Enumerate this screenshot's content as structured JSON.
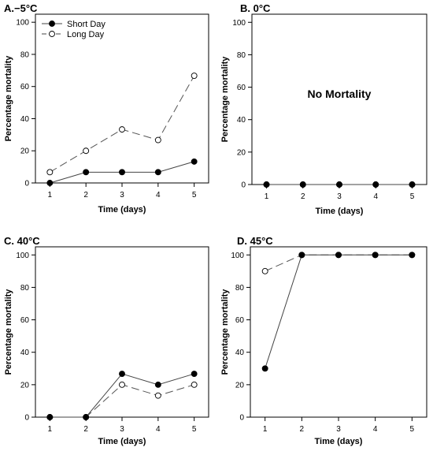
{
  "chart_data": [
    {
      "id": "A",
      "type": "line",
      "title": "A.−5°C",
      "xlabel": "Time (days)",
      "ylabel": "Percentage mortality",
      "x": [
        1,
        2,
        3,
        4,
        5
      ],
      "xticks": [
        "1",
        "2",
        "3",
        "4",
        "5"
      ],
      "yticks": [
        0,
        20,
        40,
        60,
        80,
        100
      ],
      "ylim": [
        0,
        105
      ],
      "xlim": [
        0.6,
        5.4
      ],
      "legend": "top-left",
      "series": [
        {
          "name": "Short Day",
          "marker": "filled",
          "line": "solid",
          "values": [
            0,
            6.7,
            6.7,
            6.7,
            13.3
          ]
        },
        {
          "name": "Long Day",
          "marker": "open",
          "line": "dashed",
          "values": [
            6.7,
            20,
            33.3,
            26.7,
            66.7
          ]
        }
      ]
    },
    {
      "id": "B",
      "type": "line",
      "title": "B. 0°C",
      "xlabel": "Time (days)",
      "ylabel": "Percentage mortality",
      "annotation": "No Mortality",
      "x": [
        1,
        2,
        3,
        4,
        5
      ],
      "xticks": [
        "1",
        "2",
        "3",
        "4",
        "5"
      ],
      "yticks": [
        0,
        20,
        40,
        60,
        80,
        100
      ],
      "ylim": [
        0,
        105
      ],
      "xlim": [
        0.6,
        5.4
      ],
      "series": [
        {
          "name": "",
          "marker": "filled",
          "line": "solid",
          "values": [
            0,
            0,
            0,
            0,
            0
          ]
        },
        {
          "name": "",
          "marker": "open",
          "line": "dashed",
          "values": [
            0,
            0,
            0,
            0,
            0
          ]
        }
      ]
    },
    {
      "id": "C",
      "type": "line",
      "title": "C. 40°C",
      "xlabel": "Time (days)",
      "ylabel": "Percentage mortality",
      "x": [
        1,
        2,
        3,
        4,
        5
      ],
      "xticks": [
        "1",
        "2",
        "3",
        "4",
        "5"
      ],
      "yticks": [
        0,
        20,
        40,
        60,
        80,
        100
      ],
      "ylim": [
        0,
        105
      ],
      "xlim": [
        0.6,
        5.4
      ],
      "series": [
        {
          "name": "",
          "marker": "filled",
          "line": "solid",
          "values": [
            0,
            0,
            26.7,
            20,
            26.7
          ]
        },
        {
          "name": "",
          "marker": "open",
          "line": "dashed",
          "values": [
            0,
            0,
            20,
            13.3,
            20
          ]
        }
      ]
    },
    {
      "id": "D",
      "type": "line",
      "title": "D. 45°C",
      "xlabel": "Time (days)",
      "ylabel": "Percentage mortality",
      "x": [
        1,
        2,
        3,
        4,
        5
      ],
      "xticks": [
        "1",
        "2",
        "3",
        "4",
        "5"
      ],
      "yticks": [
        0,
        20,
        40,
        60,
        80,
        100
      ],
      "ylim": [
        0,
        105
      ],
      "xlim": [
        0.6,
        5.4
      ],
      "series": [
        {
          "name": "",
          "marker": "filled",
          "line": "solid",
          "values": [
            30,
            100,
            100,
            100,
            100
          ]
        },
        {
          "name": "",
          "marker": "open",
          "line": "dashed",
          "values": [
            90,
            100,
            100,
            100,
            100
          ]
        }
      ]
    }
  ]
}
